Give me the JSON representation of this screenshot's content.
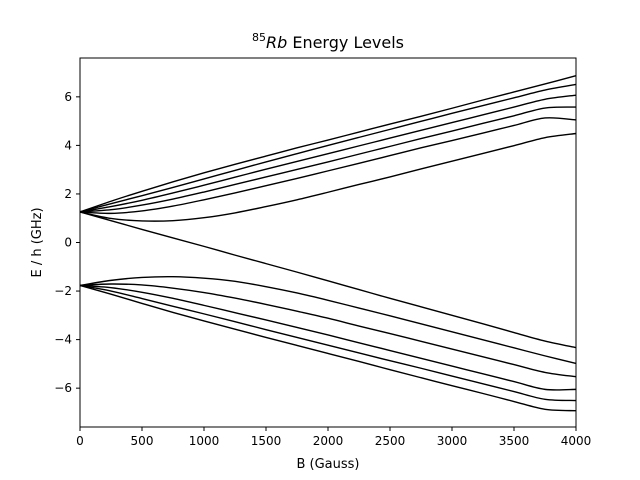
{
  "chart_data": {
    "type": "line",
    "title_sup": "85",
    "title_italic": "Rb",
    "title_rest": " Energy Levels",
    "xlabel": "B (Gauss)",
    "ylabel": "E / h (GHz)",
    "xlim": [
      0,
      4000
    ],
    "ylim": [
      -7.6,
      7.6
    ],
    "x_ticks": [
      0,
      500,
      1000,
      1500,
      2000,
      2500,
      3000,
      3500,
      4000
    ],
    "y_ticks": [
      -6,
      -4,
      -2,
      0,
      2,
      4,
      6
    ],
    "grid": false,
    "line_color": "#000000",
    "x": [
      0,
      250,
      500,
      750,
      1000,
      1250,
      1500,
      1750,
      2000,
      2250,
      2500,
      2750,
      3000,
      3250,
      3500,
      3750,
      4000
    ],
    "series": [
      {
        "values": [
          1.26,
          1.7,
          2.11,
          2.5,
          2.87,
          3.22,
          3.56,
          3.9,
          4.22,
          4.55,
          4.88,
          5.2,
          5.53,
          5.87,
          6.2,
          6.53,
          6.87
        ]
      },
      {
        "values": [
          1.26,
          1.6,
          1.93,
          2.27,
          2.62,
          2.97,
          3.32,
          3.66,
          4.0,
          4.33,
          4.66,
          4.99,
          5.32,
          5.64,
          5.96,
          6.28,
          6.51
        ]
      },
      {
        "values": [
          1.26,
          1.48,
          1.74,
          2.04,
          2.36,
          2.69,
          3.02,
          3.34,
          3.66,
          3.98,
          4.3,
          4.62,
          4.94,
          5.26,
          5.58,
          5.9,
          6.07
        ]
      },
      {
        "values": [
          1.26,
          1.35,
          1.54,
          1.79,
          2.08,
          2.39,
          2.7,
          3.01,
          3.32,
          3.64,
          3.96,
          4.28,
          4.59,
          4.91,
          5.22,
          5.54,
          5.58
        ]
      },
      {
        "values": [
          1.26,
          1.2,
          1.3,
          1.5,
          1.76,
          2.04,
          2.34,
          2.64,
          2.95,
          3.26,
          3.58,
          3.9,
          4.2,
          4.51,
          4.82,
          5.13,
          5.05
        ]
      },
      {
        "values": [
          1.26,
          0.99,
          0.89,
          0.9,
          1.02,
          1.22,
          1.48,
          1.76,
          2.07,
          2.39,
          2.7,
          3.03,
          3.35,
          3.67,
          3.99,
          4.32,
          4.49
        ]
      },
      {
        "values": [
          1.26,
          0.9,
          0.54,
          0.19,
          -0.16,
          -0.52,
          -0.87,
          -1.22,
          -1.58,
          -1.94,
          -2.3,
          -2.65,
          -3.0,
          -3.35,
          -3.71,
          -4.06,
          -4.33
        ]
      },
      {
        "values": [
          -1.77,
          -1.56,
          -1.44,
          -1.41,
          -1.47,
          -1.6,
          -1.82,
          -2.08,
          -2.38,
          -2.7,
          -3.02,
          -3.35,
          -3.68,
          -4.01,
          -4.34,
          -4.67,
          -4.98
        ]
      },
      {
        "values": [
          -1.77,
          -1.71,
          -1.75,
          -1.88,
          -2.06,
          -2.29,
          -2.55,
          -2.83,
          -3.12,
          -3.44,
          -3.75,
          -4.07,
          -4.39,
          -4.71,
          -5.03,
          -5.35,
          -5.53
        ]
      },
      {
        "values": [
          -1.77,
          -1.86,
          -2.05,
          -2.3,
          -2.59,
          -2.89,
          -3.19,
          -3.5,
          -3.81,
          -4.13,
          -4.45,
          -4.77,
          -5.09,
          -5.41,
          -5.73,
          -6.05,
          -6.05
        ]
      },
      {
        "values": [
          -1.77,
          -2.0,
          -2.31,
          -2.63,
          -2.94,
          -3.26,
          -3.59,
          -3.91,
          -4.23,
          -4.55,
          -4.87,
          -5.18,
          -5.5,
          -5.82,
          -6.14,
          -6.46,
          -6.51
        ]
      },
      {
        "values": [
          -1.77,
          -2.13,
          -2.51,
          -2.88,
          -3.23,
          -3.57,
          -3.91,
          -4.24,
          -4.57,
          -4.9,
          -5.24,
          -5.57,
          -5.9,
          -6.22,
          -6.55,
          -6.87,
          -6.93
        ]
      }
    ]
  }
}
